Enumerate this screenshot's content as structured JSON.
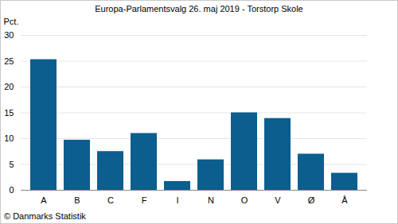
{
  "chart_data": {
    "type": "bar",
    "title": "Europa-Parlamentsvalg 26. maj 2019 - Torstorp Skole",
    "y_label": "Pct.",
    "caption": "© Danmarks Statistik",
    "categories": [
      "A",
      "B",
      "C",
      "F",
      "I",
      "N",
      "O",
      "V",
      "Ø",
      "Å"
    ],
    "values": [
      25.3,
      9.7,
      7.5,
      11.0,
      1.7,
      5.9,
      15.0,
      13.9,
      7.0,
      3.3
    ],
    "color": "#0b5e8e",
    "ylim": [
      0,
      30
    ],
    "yticks": [
      0,
      5,
      10,
      15,
      20,
      25,
      30
    ],
    "grid": true
  }
}
